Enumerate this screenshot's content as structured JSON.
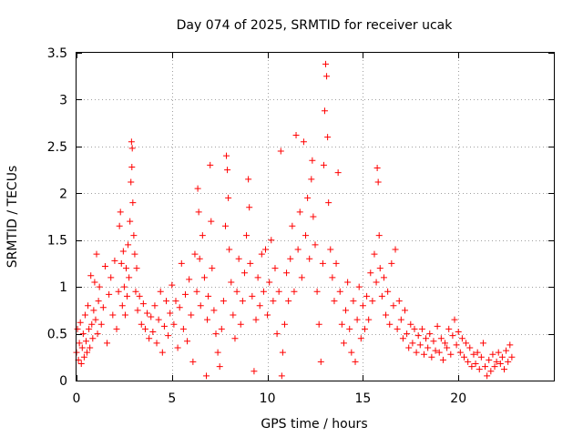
{
  "chart_data": {
    "type": "scatter",
    "title": "Day 074 of 2025, SRMTID for receiver ucak",
    "xlabel": "GPS time / hours",
    "ylabel": "SRMTID / TECUs",
    "xlim": [
      0,
      25
    ],
    "ylim": [
      0,
      3.5
    ],
    "xticks": [
      0,
      5,
      10,
      15,
      20
    ],
    "xtick_labels": [
      "0",
      "5",
      "10",
      "15",
      "20"
    ],
    "yticks": [
      0,
      0.5,
      1,
      1.5,
      2,
      2.5,
      3,
      3.5
    ],
    "ytick_labels": [
      "0",
      "0.5",
      "1",
      "1.5",
      "2",
      "2.5",
      "3",
      "3.5"
    ],
    "grid": true,
    "marker": "+",
    "color": "#ff0000",
    "series": [
      {
        "name": "SRMTID",
        "points": [
          [
            0.0,
            0.3
          ],
          [
            0.05,
            0.55
          ],
          [
            0.1,
            0.22
          ],
          [
            0.15,
            0.4
          ],
          [
            0.2,
            0.62
          ],
          [
            0.25,
            0.18
          ],
          [
            0.3,
            0.35
          ],
          [
            0.35,
            0.5
          ],
          [
            0.4,
            0.25
          ],
          [
            0.45,
            0.7
          ],
          [
            0.5,
            0.42
          ],
          [
            0.55,
            0.3
          ],
          [
            0.6,
            0.8
          ],
          [
            0.65,
            0.55
          ],
          [
            0.7,
            0.35
          ],
          [
            0.75,
            1.12
          ],
          [
            0.8,
            0.6
          ],
          [
            0.85,
            0.45
          ],
          [
            0.9,
            0.75
          ],
          [
            0.95,
            1.05
          ],
          [
            1.0,
            0.65
          ],
          [
            1.05,
            1.35
          ],
          [
            1.1,
            0.5
          ],
          [
            1.15,
            0.85
          ],
          [
            1.2,
            1.0
          ],
          [
            1.3,
            0.6
          ],
          [
            1.4,
            0.78
          ],
          [
            1.5,
            1.22
          ],
          [
            1.6,
            0.4
          ],
          [
            1.7,
            0.92
          ],
          [
            1.8,
            1.1
          ],
          [
            1.9,
            0.7
          ],
          [
            2.0,
            1.28
          ],
          [
            2.1,
            0.55
          ],
          [
            2.2,
            0.95
          ],
          [
            2.25,
            1.65
          ],
          [
            2.3,
            1.8
          ],
          [
            2.35,
            1.25
          ],
          [
            2.4,
            0.8
          ],
          [
            2.45,
            1.38
          ],
          [
            2.5,
            1.0
          ],
          [
            2.55,
            0.7
          ],
          [
            2.6,
            1.2
          ],
          [
            2.65,
            0.9
          ],
          [
            2.7,
            1.45
          ],
          [
            2.75,
            1.1
          ],
          [
            2.8,
            1.7
          ],
          [
            2.85,
            2.12
          ],
          [
            2.88,
            2.55
          ],
          [
            2.9,
            2.28
          ],
          [
            2.92,
            2.48
          ],
          [
            2.95,
            1.9
          ],
          [
            3.0,
            1.55
          ],
          [
            3.05,
            1.35
          ],
          [
            3.1,
            0.95
          ],
          [
            3.15,
            1.2
          ],
          [
            3.2,
            0.75
          ],
          [
            3.3,
            0.9
          ],
          [
            3.4,
            0.6
          ],
          [
            3.5,
            0.82
          ],
          [
            3.6,
            0.55
          ],
          [
            3.7,
            0.72
          ],
          [
            3.8,
            0.45
          ],
          [
            3.9,
            0.68
          ],
          [
            4.0,
            0.52
          ],
          [
            4.1,
            0.8
          ],
          [
            4.2,
            0.4
          ],
          [
            4.3,
            0.65
          ],
          [
            4.4,
            0.95
          ],
          [
            4.5,
            0.3
          ],
          [
            4.6,
            0.58
          ],
          [
            4.7,
            0.85
          ],
          [
            4.8,
            0.48
          ],
          [
            4.9,
            0.72
          ],
          [
            5.0,
            1.02
          ],
          [
            5.1,
            0.6
          ],
          [
            5.2,
            0.85
          ],
          [
            5.3,
            0.35
          ],
          [
            5.4,
            0.78
          ],
          [
            5.5,
            1.25
          ],
          [
            5.6,
            0.55
          ],
          [
            5.7,
            0.92
          ],
          [
            5.8,
            0.42
          ],
          [
            5.9,
            1.08
          ],
          [
            6.0,
            0.7
          ],
          [
            6.1,
            0.2
          ],
          [
            6.2,
            1.35
          ],
          [
            6.3,
            0.95
          ],
          [
            6.35,
            2.05
          ],
          [
            6.4,
            1.8
          ],
          [
            6.45,
            1.3
          ],
          [
            6.5,
            0.8
          ],
          [
            6.6,
            1.55
          ],
          [
            6.7,
            1.1
          ],
          [
            6.8,
            0.05
          ],
          [
            6.85,
            0.65
          ],
          [
            6.9,
            0.9
          ],
          [
            7.0,
            2.3
          ],
          [
            7.05,
            1.7
          ],
          [
            7.1,
            1.2
          ],
          [
            7.2,
            0.75
          ],
          [
            7.3,
            0.5
          ],
          [
            7.4,
            0.3
          ],
          [
            7.5,
            0.15
          ],
          [
            7.6,
            0.55
          ],
          [
            7.7,
            0.85
          ],
          [
            7.8,
            1.65
          ],
          [
            7.85,
            2.4
          ],
          [
            7.9,
            2.25
          ],
          [
            7.95,
            1.95
          ],
          [
            8.0,
            1.4
          ],
          [
            8.1,
            1.05
          ],
          [
            8.2,
            0.7
          ],
          [
            8.3,
            0.45
          ],
          [
            8.4,
            0.95
          ],
          [
            8.5,
            1.3
          ],
          [
            8.6,
            0.6
          ],
          [
            8.7,
            0.85
          ],
          [
            8.8,
            1.15
          ],
          [
            8.9,
            1.55
          ],
          [
            9.0,
            2.15
          ],
          [
            9.05,
            1.85
          ],
          [
            9.1,
            1.25
          ],
          [
            9.2,
            0.9
          ],
          [
            9.3,
            0.1
          ],
          [
            9.4,
            0.65
          ],
          [
            9.5,
            1.1
          ],
          [
            9.6,
            0.8
          ],
          [
            9.7,
            1.35
          ],
          [
            9.8,
            0.95
          ],
          [
            9.9,
            1.4
          ],
          [
            10.0,
            0.7
          ],
          [
            10.1,
            1.05
          ],
          [
            10.2,
            1.5
          ],
          [
            10.3,
            0.85
          ],
          [
            10.4,
            1.2
          ],
          [
            10.5,
            0.5
          ],
          [
            10.6,
            0.95
          ],
          [
            10.7,
            2.45
          ],
          [
            10.75,
            0.05
          ],
          [
            10.8,
            0.3
          ],
          [
            10.9,
            0.6
          ],
          [
            11.0,
            1.15
          ],
          [
            11.1,
            0.85
          ],
          [
            11.2,
            1.3
          ],
          [
            11.3,
            1.65
          ],
          [
            11.4,
            0.95
          ],
          [
            11.5,
            2.62
          ],
          [
            11.6,
            1.4
          ],
          [
            11.7,
            1.8
          ],
          [
            11.8,
            1.1
          ],
          [
            11.9,
            2.55
          ],
          [
            12.0,
            1.55
          ],
          [
            12.1,
            1.95
          ],
          [
            12.2,
            1.3
          ],
          [
            12.3,
            2.15
          ],
          [
            12.35,
            2.35
          ],
          [
            12.4,
            1.75
          ],
          [
            12.5,
            1.45
          ],
          [
            12.6,
            0.95
          ],
          [
            12.7,
            0.6
          ],
          [
            12.8,
            0.2
          ],
          [
            12.9,
            1.25
          ],
          [
            12.95,
            2.3
          ],
          [
            13.0,
            2.88
          ],
          [
            13.05,
            3.38
          ],
          [
            13.1,
            3.25
          ],
          [
            13.15,
            2.6
          ],
          [
            13.2,
            1.9
          ],
          [
            13.3,
            1.4
          ],
          [
            13.4,
            1.1
          ],
          [
            13.5,
            0.85
          ],
          [
            13.6,
            1.25
          ],
          [
            13.7,
            2.22
          ],
          [
            13.8,
            0.95
          ],
          [
            13.9,
            0.6
          ],
          [
            14.0,
            0.4
          ],
          [
            14.1,
            0.75
          ],
          [
            14.2,
            1.05
          ],
          [
            14.3,
            0.55
          ],
          [
            14.4,
            0.3
          ],
          [
            14.5,
            0.85
          ],
          [
            14.6,
            0.2
          ],
          [
            14.7,
            0.65
          ],
          [
            14.8,
            1.0
          ],
          [
            14.9,
            0.45
          ],
          [
            15.0,
            0.8
          ],
          [
            15.1,
            0.55
          ],
          [
            15.2,
            0.9
          ],
          [
            15.3,
            0.65
          ],
          [
            15.4,
            1.15
          ],
          [
            15.5,
            0.85
          ],
          [
            15.6,
            1.35
          ],
          [
            15.7,
            1.05
          ],
          [
            15.75,
            2.27
          ],
          [
            15.8,
            2.12
          ],
          [
            15.85,
            1.55
          ],
          [
            15.9,
            1.2
          ],
          [
            16.0,
            0.9
          ],
          [
            16.1,
            1.1
          ],
          [
            16.2,
            0.7
          ],
          [
            16.3,
            0.95
          ],
          [
            16.4,
            0.6
          ],
          [
            16.5,
            1.25
          ],
          [
            16.6,
            0.8
          ],
          [
            16.7,
            1.4
          ],
          [
            16.8,
            0.55
          ],
          [
            16.9,
            0.85
          ],
          [
            17.0,
            0.65
          ],
          [
            17.1,
            0.45
          ],
          [
            17.2,
            0.75
          ],
          [
            17.3,
            0.5
          ],
          [
            17.4,
            0.35
          ],
          [
            17.5,
            0.6
          ],
          [
            17.6,
            0.4
          ],
          [
            17.7,
            0.55
          ],
          [
            17.8,
            0.3
          ],
          [
            17.9,
            0.48
          ],
          [
            18.0,
            0.38
          ],
          [
            18.1,
            0.55
          ],
          [
            18.2,
            0.28
          ],
          [
            18.3,
            0.45
          ],
          [
            18.4,
            0.35
          ],
          [
            18.5,
            0.5
          ],
          [
            18.6,
            0.25
          ],
          [
            18.7,
            0.42
          ],
          [
            18.8,
            0.32
          ],
          [
            18.9,
            0.58
          ],
          [
            19.0,
            0.3
          ],
          [
            19.1,
            0.45
          ],
          [
            19.2,
            0.22
          ],
          [
            19.3,
            0.4
          ],
          [
            19.4,
            0.35
          ],
          [
            19.5,
            0.55
          ],
          [
            19.6,
            0.28
          ],
          [
            19.7,
            0.48
          ],
          [
            19.8,
            0.65
          ],
          [
            19.9,
            0.38
          ],
          [
            20.0,
            0.52
          ],
          [
            20.1,
            0.3
          ],
          [
            20.2,
            0.45
          ],
          [
            20.3,
            0.25
          ],
          [
            20.4,
            0.4
          ],
          [
            20.5,
            0.2
          ],
          [
            20.6,
            0.35
          ],
          [
            20.7,
            0.15
          ],
          [
            20.8,
            0.28
          ],
          [
            20.9,
            0.18
          ],
          [
            21.0,
            0.3
          ],
          [
            21.1,
            0.12
          ],
          [
            21.2,
            0.25
          ],
          [
            21.3,
            0.4
          ],
          [
            21.4,
            0.15
          ],
          [
            21.5,
            0.05
          ],
          [
            21.6,
            0.22
          ],
          [
            21.7,
            0.1
          ],
          [
            21.8,
            0.28
          ],
          [
            21.9,
            0.15
          ],
          [
            22.0,
            0.2
          ],
          [
            22.1,
            0.3
          ],
          [
            22.2,
            0.18
          ],
          [
            22.3,
            0.25
          ],
          [
            22.4,
            0.12
          ],
          [
            22.5,
            0.32
          ],
          [
            22.6,
            0.2
          ],
          [
            22.7,
            0.38
          ],
          [
            22.8,
            0.25
          ]
        ]
      }
    ]
  }
}
